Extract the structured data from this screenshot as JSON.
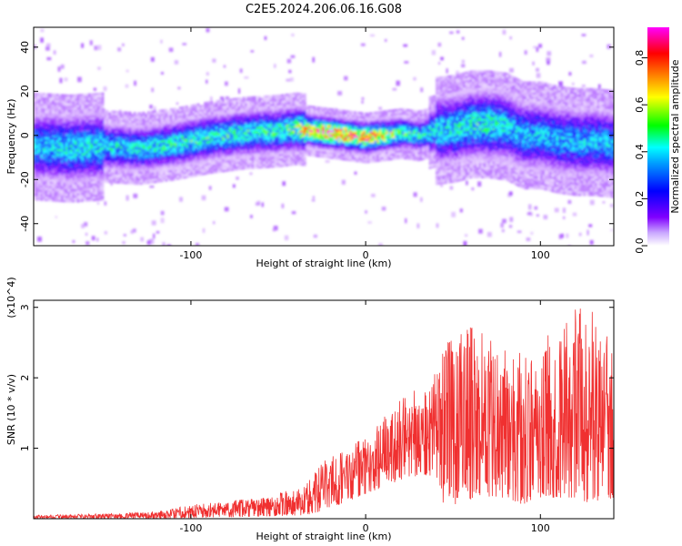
{
  "title": "C2E5.2024.206.06.16.G08",
  "chart_data": [
    {
      "type": "heatmap",
      "title": "C2E5.2024.206.06.16.G08",
      "xlabel": "Height of straight line (km)",
      "ylabel": "Frequency (Hz)",
      "xlim": [
        -190,
        142
      ],
      "ylim": [
        -50,
        49
      ],
      "x_ticks": [
        -100,
        0,
        100
      ],
      "y_ticks": [
        40,
        20,
        0,
        -20,
        -40
      ],
      "grid": false,
      "colorbar": {
        "label": "Normalized spectral amplitude",
        "range": [
          0.0,
          0.93
        ],
        "ticks": [
          0.0,
          0.2,
          0.4,
          0.6,
          0.8
        ],
        "colormap": [
          "#ffffff",
          "#8000ff",
          "#0000ff",
          "#00ffff",
          "#00ff00",
          "#ffff00",
          "#ff8000",
          "#ff0000",
          "#ff00ff"
        ]
      },
      "ridge": {
        "x": [
          -190,
          -170,
          -150,
          -130,
          -110,
          -90,
          -70,
          -50,
          -40,
          -30,
          -20,
          -10,
          0,
          10,
          20,
          30,
          40,
          50,
          60,
          70,
          80,
          90,
          100,
          110,
          120,
          130,
          142
        ],
        "center_hz": [
          -5,
          -6,
          -5,
          -6,
          -4,
          -1,
          1,
          2,
          3,
          2,
          1,
          0,
          -1,
          0,
          1,
          0,
          2,
          3,
          5,
          5,
          4,
          0,
          0,
          -2,
          -3,
          -3,
          -4
        ],
        "peak_amplitude": [
          0.4,
          0.45,
          0.45,
          0.45,
          0.5,
          0.5,
          0.5,
          0.5,
          0.6,
          0.85,
          0.9,
          0.8,
          0.85,
          0.7,
          0.55,
          0.5,
          0.45,
          0.45,
          0.5,
          0.5,
          0.45,
          0.4,
          0.4,
          0.4,
          0.4,
          0.4,
          0.4
        ]
      }
    },
    {
      "type": "line",
      "xlabel": "Height of straight line (km)",
      "ylabel": "SNR (10 * v/v)",
      "y_multiplier": "(x10^4)",
      "xlim": [
        -190,
        142
      ],
      "ylim": [
        0,
        3.1
      ],
      "x_ticks": [
        -100,
        0,
        100
      ],
      "y_ticks": [
        1,
        2,
        3
      ],
      "grid": false,
      "series": [
        {
          "color": "#f03030",
          "x": [
            -190,
            -150,
            -120,
            -100,
            -80,
            -60,
            -45,
            -35,
            -25,
            -15,
            -5,
            5,
            15,
            25,
            32,
            38,
            45,
            55,
            62,
            70,
            80,
            90,
            100,
            110,
            120,
            130,
            142
          ],
          "y_upper": [
            0.05,
            0.07,
            0.1,
            0.2,
            0.25,
            0.3,
            0.4,
            0.45,
            0.8,
            0.95,
            1.1,
            1.3,
            1.6,
            1.8,
            1.9,
            2.0,
            2.4,
            2.85,
            2.75,
            2.55,
            2.4,
            2.35,
            2.6,
            2.7,
            3.05,
            3.0,
            2.4
          ],
          "y_lower": [
            0.0,
            0.0,
            0.0,
            0.01,
            0.02,
            0.03,
            0.04,
            0.05,
            0.1,
            0.2,
            0.3,
            0.4,
            0.5,
            0.6,
            0.6,
            0.5,
            0.2,
            0.2,
            0.3,
            0.3,
            0.3,
            0.2,
            0.3,
            0.3,
            0.3,
            0.2,
            0.3
          ]
        }
      ]
    }
  ]
}
